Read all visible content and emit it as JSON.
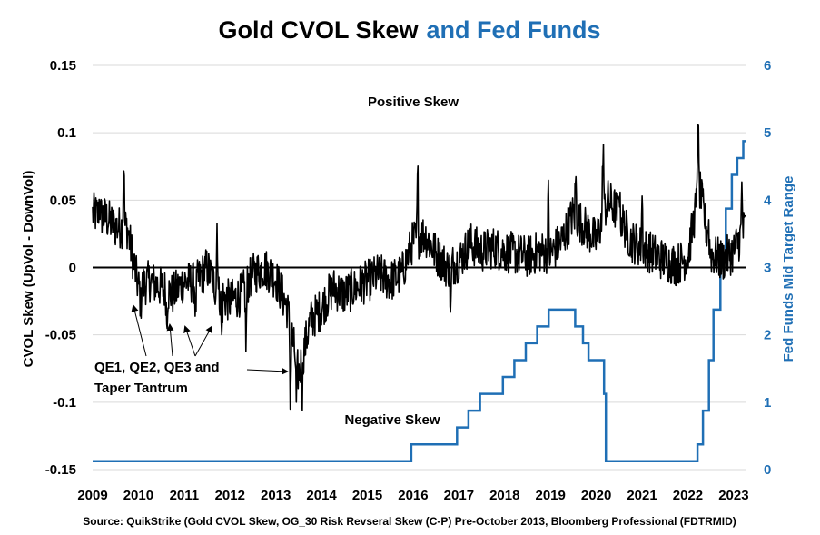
{
  "colors": {
    "skew": "#000000",
    "fed": "#1f6fb5",
    "grid": "#d9d9d9",
    "text": "#000000"
  },
  "title_black": "Gold CVOL Skew",
  "title_blue": "and Fed Funds",
  "source": "Source: QuikStrike (Gold CVOL Skew, OG_30 Risk Revseral Skew (C-P) Pre-October 2013, Bloomberg Professional (FDTRMID)",
  "annotations": {
    "positive": "Positive Skew",
    "negative": "Negative Skew",
    "qe_line1": "QE1, QE2, QE3 and",
    "qe_line2": "Taper Tantrum"
  },
  "chart_data": {
    "type": "line",
    "title": "Gold CVOL Skew and Fed Funds",
    "ylabel": "CVOL Skew (UpVol - DownVol)",
    "y2label": "Fed Funds Mid Target Range",
    "ylim": [
      -0.15,
      0.15
    ],
    "y2lim": [
      0,
      6
    ],
    "xlim": [
      2009,
      2023.28
    ],
    "x_ticks": [
      "2009",
      "2010",
      "2011",
      "2012",
      "2013",
      "2014",
      "2015",
      "2016",
      "2017",
      "2018",
      "2019",
      "2020",
      "2021",
      "2022",
      "2023"
    ],
    "y_ticks": [
      "0.15",
      "0.1",
      "0.05",
      "0",
      "-0.05",
      "-0.1",
      "-0.15"
    ],
    "y2_ticks": [
      "6",
      "5",
      "4",
      "3",
      "2",
      "1",
      "0"
    ],
    "grid": true,
    "skew_anchors": [
      [
        2009.0,
        0.04
      ],
      [
        2009.25,
        0.038
      ],
      [
        2009.5,
        0.03
      ],
      [
        2009.75,
        0.03
      ],
      [
        2010.0,
        -0.015
      ],
      [
        2010.25,
        -0.01
      ],
      [
        2010.5,
        -0.015
      ],
      [
        2010.75,
        -0.02
      ],
      [
        2011.0,
        -0.01
      ],
      [
        2011.25,
        -0.012
      ],
      [
        2011.5,
        0.0
      ],
      [
        2011.75,
        -0.02
      ],
      [
        2012.0,
        -0.025
      ],
      [
        2012.25,
        -0.02
      ],
      [
        2012.5,
        -0.005
      ],
      [
        2012.75,
        0.0
      ],
      [
        2013.0,
        -0.008
      ],
      [
        2013.25,
        -0.03
      ],
      [
        2013.5,
        -0.08
      ],
      [
        2013.75,
        -0.04
      ],
      [
        2014.0,
        -0.03
      ],
      [
        2014.25,
        -0.015
      ],
      [
        2014.5,
        -0.02
      ],
      [
        2014.75,
        -0.015
      ],
      [
        2015.0,
        -0.01
      ],
      [
        2015.25,
        -0.005
      ],
      [
        2015.5,
        -0.01
      ],
      [
        2015.75,
        -0.005
      ],
      [
        2016.0,
        0.02
      ],
      [
        2016.25,
        0.025
      ],
      [
        2016.5,
        0.01
      ],
      [
        2016.75,
        0.0
      ],
      [
        2017.0,
        0.005
      ],
      [
        2017.25,
        0.018
      ],
      [
        2017.5,
        0.012
      ],
      [
        2017.75,
        0.015
      ],
      [
        2018.0,
        0.012
      ],
      [
        2018.25,
        0.01
      ],
      [
        2018.5,
        0.008
      ],
      [
        2018.75,
        0.012
      ],
      [
        2019.0,
        0.01
      ],
      [
        2019.25,
        0.02
      ],
      [
        2019.5,
        0.04
      ],
      [
        2019.75,
        0.03
      ],
      [
        2020.0,
        0.02
      ],
      [
        2020.25,
        0.05
      ],
      [
        2020.5,
        0.04
      ],
      [
        2020.75,
        0.02
      ],
      [
        2021.0,
        0.015
      ],
      [
        2021.25,
        0.01
      ],
      [
        2021.5,
        0.005
      ],
      [
        2021.75,
        0.002
      ],
      [
        2022.0,
        0.008
      ],
      [
        2022.25,
        0.06
      ],
      [
        2022.5,
        0.01
      ],
      [
        2022.75,
        0.005
      ],
      [
        2023.0,
        0.012
      ],
      [
        2023.25,
        0.03
      ]
    ],
    "skew_spikes": [
      [
        2009.15,
        0.052
      ],
      [
        2009.68,
        0.085
      ],
      [
        2010.05,
        -0.03
      ],
      [
        2010.62,
        -0.04
      ],
      [
        2011.25,
        -0.036
      ],
      [
        2011.72,
        0.038
      ],
      [
        2011.82,
        -0.055
      ],
      [
        2012.35,
        -0.06
      ],
      [
        2013.32,
        -0.105
      ],
      [
        2013.45,
        -0.105
      ],
      [
        2013.58,
        -0.095
      ],
      [
        2016.1,
        0.072
      ],
      [
        2016.82,
        -0.04
      ],
      [
        2018.95,
        0.061
      ],
      [
        2019.55,
        0.07
      ],
      [
        2020.15,
        0.102
      ],
      [
        2020.5,
        0.065
      ],
      [
        2021.0,
        0.055
      ],
      [
        2022.22,
        0.122
      ],
      [
        2022.45,
        0.035
      ],
      [
        2023.18,
        0.06
      ]
    ],
    "fed_funds": [
      [
        2009.0,
        0.125
      ],
      [
        2015.96,
        0.125
      ],
      [
        2015.96,
        0.375
      ],
      [
        2016.96,
        0.375
      ],
      [
        2016.96,
        0.625
      ],
      [
        2017.21,
        0.625
      ],
      [
        2017.21,
        0.875
      ],
      [
        2017.46,
        0.875
      ],
      [
        2017.46,
        1.125
      ],
      [
        2017.96,
        1.125
      ],
      [
        2017.96,
        1.375
      ],
      [
        2018.21,
        1.375
      ],
      [
        2018.21,
        1.625
      ],
      [
        2018.46,
        1.625
      ],
      [
        2018.46,
        1.875
      ],
      [
        2018.71,
        1.875
      ],
      [
        2018.71,
        2.125
      ],
      [
        2018.96,
        2.125
      ],
      [
        2018.96,
        2.375
      ],
      [
        2019.54,
        2.375
      ],
      [
        2019.54,
        2.125
      ],
      [
        2019.71,
        2.125
      ],
      [
        2019.71,
        1.875
      ],
      [
        2019.83,
        1.875
      ],
      [
        2019.83,
        1.625
      ],
      [
        2020.17,
        1.625
      ],
      [
        2020.17,
        1.125
      ],
      [
        2020.21,
        1.125
      ],
      [
        2020.21,
        0.125
      ],
      [
        2022.21,
        0.125
      ],
      [
        2022.21,
        0.375
      ],
      [
        2022.33,
        0.375
      ],
      [
        2022.33,
        0.875
      ],
      [
        2022.46,
        0.875
      ],
      [
        2022.46,
        1.625
      ],
      [
        2022.56,
        1.625
      ],
      [
        2022.56,
        2.375
      ],
      [
        2022.71,
        2.375
      ],
      [
        2022.71,
        3.125
      ],
      [
        2022.83,
        3.125
      ],
      [
        2022.83,
        3.875
      ],
      [
        2022.96,
        3.875
      ],
      [
        2022.96,
        4.375
      ],
      [
        2023.08,
        4.375
      ],
      [
        2023.08,
        4.625
      ],
      [
        2023.21,
        4.625
      ],
      [
        2023.21,
        4.875
      ],
      [
        2023.28,
        4.875
      ]
    ]
  }
}
